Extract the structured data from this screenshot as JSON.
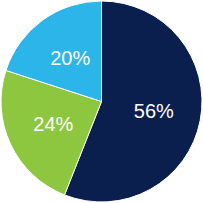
{
  "chart_data": {
    "type": "pie",
    "values": [
      56,
      24,
      20
    ],
    "value_labels": [
      "56%",
      "24%",
      "20%"
    ],
    "colors": [
      "#0b1f4f",
      "#8dc63f",
      "#2bb5e8"
    ],
    "data_labels": true
  }
}
